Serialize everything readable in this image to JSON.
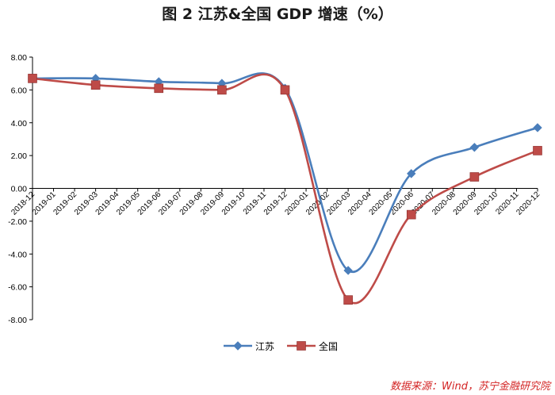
{
  "chart_data": {
    "type": "line",
    "title": "图 2   江苏&全国 GDP 增速（%）",
    "categories": [
      "2018-12",
      "2019-01",
      "2019-02",
      "2019-03",
      "2019-04",
      "2019-05",
      "2019-06",
      "2019-07",
      "2019-08",
      "2019-09",
      "2019-10",
      "2019-11",
      "2019-12",
      "2020-01",
      "2020-02",
      "2020-03",
      "2020-04",
      "2020-05",
      "2020-06",
      "2020-07",
      "2020-08",
      "2020-09",
      "2020-10",
      "2020-11",
      "2020-12"
    ],
    "yticks": [
      "8.00",
      "6.00",
      "4.00",
      "2.00",
      "0.00",
      "-2.00",
      "-4.00",
      "-6.00",
      "-8.00"
    ],
    "ylim": [
      -8,
      8
    ],
    "grid": false,
    "legend": "bottom-center",
    "series": [
      {
        "name": "江苏",
        "color": "#4a7ebb",
        "marker": "diamond",
        "points": [
          [
            0,
            6.7
          ],
          [
            3,
            6.7
          ],
          [
            6,
            6.5
          ],
          [
            9,
            6.4
          ],
          [
            12,
            6.1
          ],
          [
            15,
            -5.0
          ],
          [
            18,
            0.9
          ],
          [
            21,
            2.5
          ],
          [
            24,
            3.7
          ]
        ]
      },
      {
        "name": "全国",
        "color": "#be4b48",
        "marker": "square",
        "points": [
          [
            0,
            6.7
          ],
          [
            3,
            6.3
          ],
          [
            6,
            6.1
          ],
          [
            9,
            6.0
          ],
          [
            12,
            6.0
          ],
          [
            15,
            -6.8
          ],
          [
            18,
            -1.6
          ],
          [
            21,
            0.7
          ],
          [
            24,
            2.3
          ]
        ]
      }
    ],
    "source": "数据来源：Wind，苏宁金融研究院"
  }
}
